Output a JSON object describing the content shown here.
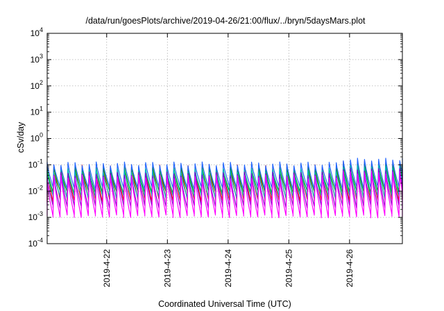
{
  "chart_data": {
    "type": "line",
    "title": "/data/run/goesPlots/archive/2019-04-26/21:00/flux/../bryn/5daysMars.plot",
    "xlabel": "Coordinated Universal Time (UTC)",
    "ylabel": "cSv/day",
    "yscale": "log",
    "ylim": [
      0.0001,
      10000
    ],
    "xlim": [
      0,
      5.85
    ],
    "grid": true,
    "y_ticks": [
      {
        "value": 0.0001,
        "base": "10",
        "exp": "-4"
      },
      {
        "value": 0.001,
        "base": "10",
        "exp": "-3"
      },
      {
        "value": 0.01,
        "base": "10",
        "exp": "-2"
      },
      {
        "value": 0.1,
        "base": "10",
        "exp": "-1"
      },
      {
        "value": 1,
        "base": "10",
        "exp": "0"
      },
      {
        "value": 10,
        "base": "10",
        "exp": "1"
      },
      {
        "value": 100,
        "base": "10",
        "exp": "2"
      },
      {
        "value": 1000,
        "base": "10",
        "exp": "3"
      },
      {
        "value": 10000,
        "base": "10",
        "exp": "4"
      }
    ],
    "x_ticks": [
      {
        "value": 0.98,
        "label": "2019-4-22"
      },
      {
        "value": 1.98,
        "label": "2019-4-23"
      },
      {
        "value": 2.98,
        "label": "2019-4-24"
      },
      {
        "value": 3.98,
        "label": "2019-4-25"
      },
      {
        "value": 4.98,
        "label": "2019-4-26"
      }
    ],
    "sawtooth": {
      "cycles_per_day": 8.6,
      "peak_envelope_max": 0.1,
      "peak_envelope_late": 0.15,
      "trough_envelope_min": 0.001
    },
    "series": [
      {
        "color": "#ff0000",
        "peak": 0.085,
        "trough": 0.0045
      },
      {
        "color": "#00aa00",
        "peak": 0.075,
        "trough": 0.009
      },
      {
        "color": "#2266ff",
        "peak": 0.11,
        "trough": 0.013
      },
      {
        "color": "#00bbbb",
        "peak": 0.06,
        "trough": 0.006
      },
      {
        "color": "#8800cc",
        "peak": 0.045,
        "trough": 0.0025
      },
      {
        "color": "#ff00ff",
        "peak": 0.035,
        "trough": 0.0011
      }
    ]
  }
}
